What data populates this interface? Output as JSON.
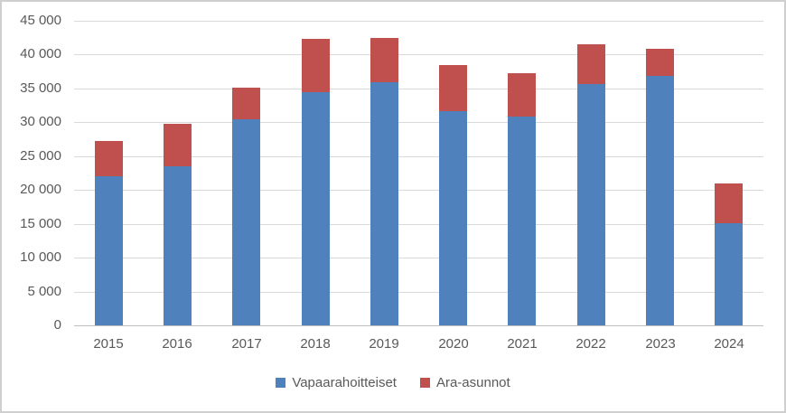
{
  "chart_data": {
    "type": "bar",
    "stacked": true,
    "title": "",
    "xlabel": "",
    "ylabel": "",
    "categories": [
      "2015",
      "2016",
      "2017",
      "2018",
      "2019",
      "2020",
      "2021",
      "2022",
      "2023",
      "2024"
    ],
    "series": [
      {
        "name": "Vapaarahoitteiset",
        "color": "#4F81BD",
        "values": [
          22000,
          23500,
          30400,
          34400,
          35900,
          31700,
          30900,
          35600,
          36900,
          15100
        ]
      },
      {
        "name": "Ara-asunnot",
        "color": "#C0504D",
        "values": [
          5300,
          6300,
          4700,
          7900,
          6600,
          6800,
          6300,
          5900,
          3900,
          5800
        ]
      }
    ],
    "ylim": [
      0,
      45000
    ],
    "ytick_step": 5000,
    "ytick_labels": [
      "0",
      "5 000",
      "10 000",
      "15 000",
      "20 000",
      "25 000",
      "30 000",
      "35 000",
      "40 000",
      "45 000"
    ],
    "grid": true,
    "legend_position": "bottom",
    "gridline_color": "#D9D9D9",
    "axisline_color": "#BFBFBF",
    "text_color": "#595959"
  }
}
